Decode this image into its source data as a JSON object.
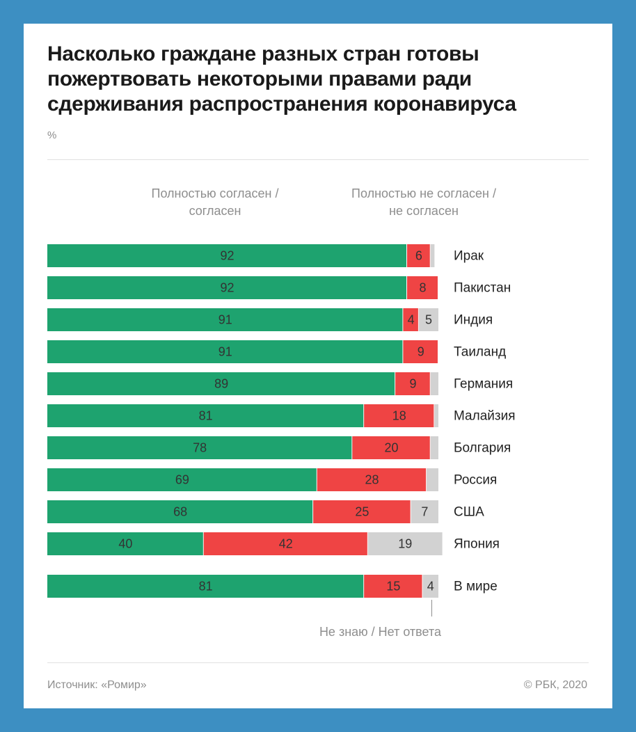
{
  "title": "Насколько граждане разных стран готовы пожертвовать некоторыми правами ради сдерживания распространения коронавируса",
  "unit": "%",
  "legend": {
    "agree": "Полностью согласен /\nсогласен",
    "disagree": "Полностью не согласен /\nне согласен",
    "dont_know": "Не знаю / Нет ответа"
  },
  "source": "Источник: «Ромир»",
  "copyright": "© РБК, 2020",
  "colors": {
    "agree": "#1ea36f",
    "disagree": "#ef4444",
    "dont_know": "#d2d2d2",
    "label": "#333333"
  },
  "chart_data": {
    "type": "bar",
    "orientation": "horizontal",
    "stacked": true,
    "xlim": [
      0,
      100
    ],
    "categories": [
      "Ирак",
      "Пакистан",
      "Индия",
      "Таиланд",
      "Германия",
      "Малайзия",
      "Болгария",
      "Россия",
      "США",
      "Япония",
      "В мире"
    ],
    "series": [
      {
        "name": "Полностью согласен / согласен",
        "values": [
          92,
          92,
          91,
          91,
          89,
          81,
          78,
          69,
          68,
          40,
          81
        ]
      },
      {
        "name": "Полностью не согласен / не согласен",
        "values": [
          6,
          8,
          4,
          9,
          9,
          18,
          20,
          28,
          25,
          42,
          15
        ]
      },
      {
        "name": "Не знаю / Нет ответа",
        "values": [
          1,
          0,
          5,
          0,
          2,
          1,
          2,
          3,
          7,
          19,
          4
        ]
      }
    ],
    "value_labels_visible": [
      [
        true,
        true,
        true,
        true,
        true,
        true,
        true,
        true,
        true,
        true,
        true
      ],
      [
        true,
        true,
        true,
        true,
        true,
        true,
        true,
        true,
        true,
        true,
        true
      ],
      [
        false,
        false,
        true,
        false,
        false,
        false,
        false,
        false,
        true,
        true,
        true
      ]
    ]
  }
}
